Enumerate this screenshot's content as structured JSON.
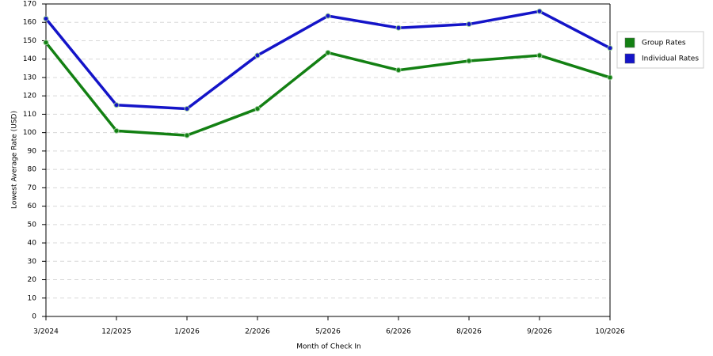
{
  "chart_data": {
    "type": "line",
    "x_label": "Month of Check In",
    "y_label": "Lowest Average Rate (USD)",
    "categories": [
      "3/2024",
      "12/2025",
      "1/2026",
      "2/2026",
      "5/2026",
      "6/2026",
      "8/2026",
      "9/2026",
      "10/2026"
    ],
    "series": [
      {
        "name": "Group Rates",
        "color": "#138013",
        "values": [
          149,
          101,
          98.5,
          113,
          143.5,
          134,
          139,
          142,
          130
        ]
      },
      {
        "name": "Individual Rates",
        "color": "#1414c8",
        "values": [
          162,
          115,
          113,
          142,
          163.5,
          157,
          159,
          166,
          146
        ]
      }
    ],
    "ylim": [
      0,
      170
    ],
    "yticks": [
      0,
      10,
      20,
      30,
      40,
      50,
      60,
      70,
      80,
      90,
      100,
      110,
      120,
      130,
      140,
      150,
      160,
      170
    ],
    "grid": true,
    "legend": "right"
  }
}
